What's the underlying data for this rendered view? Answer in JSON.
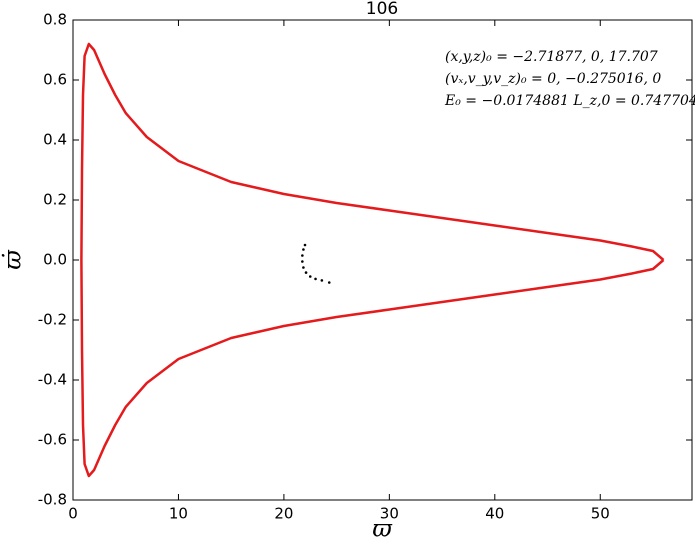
{
  "chart_data": {
    "type": "line",
    "title": "106",
    "xlabel": "ϖ",
    "ylabel": "ϖ̇",
    "annotations": [
      "(x,y,z)₀ = −2.71877, 0, 17.707",
      "(vₓ,v_y,v_z)₀ = 0, −0.275016, 0",
      "E₀ = −0.0174881   L_z,0 = 0.747704"
    ],
    "xlim": [
      0,
      58.7
    ],
    "ylim": [
      -0.8,
      0.8
    ],
    "xticks": [
      0,
      10,
      20,
      30,
      40,
      50
    ],
    "yticks": [
      -0.8,
      -0.6,
      -0.4,
      -0.2,
      {
        "value": 0,
        "label": "0.0"
      },
      0.2,
      0.4,
      0.6,
      0.8
    ],
    "series": [
      {
        "color": "#e41a1c",
        "x": [
          56,
          55,
          53,
          50,
          45,
          40,
          35,
          30,
          25,
          20,
          15,
          10,
          7,
          5,
          4,
          3,
          2,
          1.5,
          1.1,
          0.95,
          0.85,
          0.8,
          0.85,
          0.95,
          1.1,
          1.5,
          2,
          3,
          4,
          5,
          7,
          10,
          15,
          20,
          25,
          30,
          35,
          40,
          45,
          50,
          53,
          55,
          56
        ],
        "values": [
          0,
          0.03,
          0.045,
          0.065,
          0.09,
          0.115,
          0.14,
          0.165,
          0.19,
          0.22,
          0.26,
          0.33,
          0.41,
          0.49,
          0.55,
          0.62,
          0.7,
          0.72,
          0.68,
          0.55,
          0.3,
          0,
          -0.3,
          -0.55,
          -0.68,
          -0.72,
          -0.7,
          -0.62,
          -0.55,
          -0.49,
          -0.41,
          -0.33,
          -0.26,
          -0.22,
          -0.19,
          -0.165,
          -0.14,
          -0.115,
          -0.09,
          -0.065,
          -0.045,
          -0.03,
          0
        ]
      },
      {
        "color": "#000000",
        "marker": "dot",
        "x": [
          22,
          21.85,
          21.75,
          21.75,
          21.85,
          22.1,
          22.5,
          23.0,
          23.6,
          24.3
        ],
        "values": [
          0.05,
          0.035,
          0.015,
          -0.005,
          -0.025,
          -0.042,
          -0.055,
          -0.063,
          -0.068,
          -0.075
        ]
      }
    ]
  }
}
